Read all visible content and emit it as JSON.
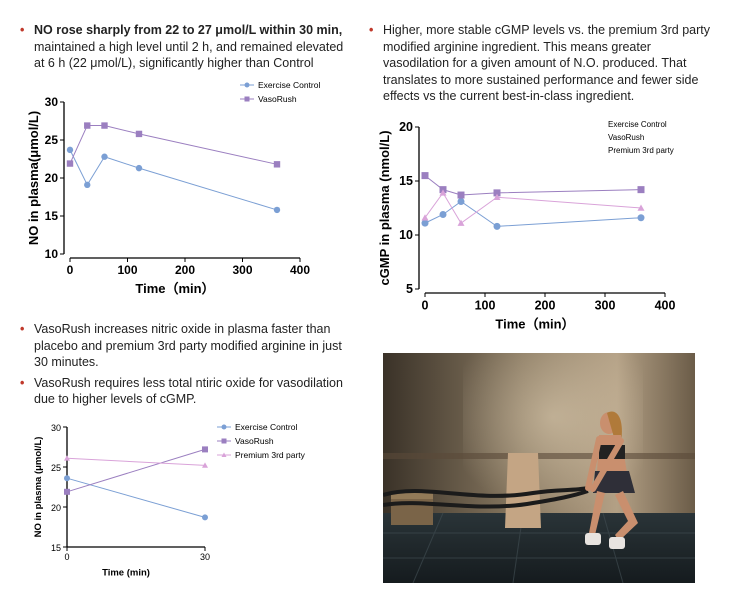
{
  "left_intro": {
    "bold": "NO rose sharply from 22 to 27 μmol/L within 30 min,",
    "rest": " maintained a high level until 2 h, and remained elevated at 6 h (22 μmol/L), significantly higher than Control"
  },
  "right_intro": "Higher, more stable cGMP levels vs. the premium 3rd party modified arginine ingredient. This means greater vasodilation for a given amount of N.O. produced. That translates to more sustained performance and fewer side effects vs the current best-in-class ingredient.",
  "left_bullets": [
    "VasoRush increases nitric oxide in plasma faster than placebo and premium 3rd party modified arginine in just 30 minutes.",
    "VasoRush requires less total ntiric oxide for vasodilation due to higher levels of cGMP."
  ],
  "colors": {
    "bullet": "#c0392b",
    "control": "#7b9fd4",
    "vasorush": "#9b7fc0",
    "premium": "#d9a3d9"
  },
  "photo": {
    "description_icon": "athlete-battle-ropes-photo"
  },
  "chart_data": [
    {
      "type": "line",
      "title": "",
      "xlabel": "Time（min）",
      "ylabel": "NO in plasma(μmol/L)",
      "xlim": [
        0,
        400
      ],
      "ylim": [
        10,
        30
      ],
      "xticks": [
        "0",
        "100",
        "200",
        "300",
        "400"
      ],
      "yticks": [
        "10",
        "15",
        "20",
        "25",
        "30"
      ],
      "legend_position": "top-right",
      "series": [
        {
          "name": "Exercise Control",
          "x": [
            0,
            30,
            60,
            120,
            360
          ],
          "y": [
            23.7,
            19.1,
            22.8,
            21.3,
            15.8
          ]
        },
        {
          "name": "VasoRush",
          "x": [
            0,
            30,
            60,
            120,
            360
          ],
          "y": [
            21.9,
            26.9,
            26.9,
            25.8,
            21.8
          ]
        }
      ]
    },
    {
      "type": "line",
      "title": "",
      "xlabel": "Time（min）",
      "ylabel": "cGMP in plasma (nmol/L)",
      "xlim": [
        0,
        400
      ],
      "ylim": [
        5,
        20
      ],
      "xticks": [
        "0",
        "100",
        "200",
        "300",
        "400"
      ],
      "yticks": [
        "5",
        "10",
        "15",
        "20"
      ],
      "legend_position": "top-right",
      "series": [
        {
          "name": "Exercise Control",
          "x": [
            0,
            30,
            60,
            120,
            360
          ],
          "y": [
            11.1,
            11.9,
            13.1,
            10.8,
            11.6
          ]
        },
        {
          "name": "VasoRush",
          "x": [
            0,
            30,
            60,
            120,
            360
          ],
          "y": [
            15.5,
            14.2,
            13.7,
            13.9,
            14.2
          ]
        },
        {
          "name": "Premium 3rd party",
          "x": [
            0,
            30,
            60,
            120,
            360
          ],
          "y": [
            11.6,
            13.9,
            11.1,
            13.5,
            12.5
          ]
        }
      ]
    },
    {
      "type": "line",
      "title": "",
      "xlabel": "Time (min)",
      "ylabel": "NO in plasma (μmol/L)",
      "xlim": [
        0,
        30
      ],
      "ylim": [
        15,
        30
      ],
      "xticks": [
        "0",
        "30"
      ],
      "yticks": [
        "15",
        "20",
        "25",
        "30"
      ],
      "legend_position": "top-right",
      "series": [
        {
          "name": "Exercise Control",
          "x": [
            0,
            30
          ],
          "y": [
            23.6,
            18.7
          ]
        },
        {
          "name": "VasoRush",
          "x": [
            0,
            30
          ],
          "y": [
            21.9,
            27.2
          ]
        },
        {
          "name": "Premium 3rd party",
          "x": [
            0,
            30
          ],
          "y": [
            26.1,
            25.2
          ]
        }
      ]
    }
  ]
}
